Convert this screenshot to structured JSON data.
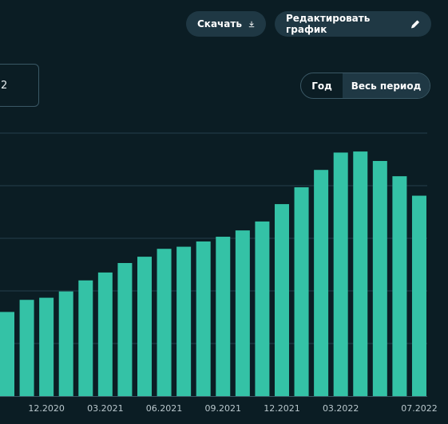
{
  "toolbar": {
    "download_label": "Скачать",
    "edit_label": "Редактировать график"
  },
  "selector": {
    "value": "2"
  },
  "period_toggle": {
    "options": [
      "Год",
      "Весь период"
    ],
    "active": "Весь период"
  },
  "colors": {
    "background": "#0b1d24",
    "bar": "#34c2a6",
    "grid": "#24404b",
    "button_bg": "#1f3844"
  },
  "icons": {
    "download": "download-icon",
    "edit": "pencil-icon"
  },
  "chart_data": {
    "type": "bar",
    "categories": [
      "10.2020",
      "11.2020",
      "12.2020",
      "01.2021",
      "02.2021",
      "03.2021",
      "04.2021",
      "05.2021",
      "06.2021",
      "07.2021",
      "08.2021",
      "09.2021",
      "10.2021",
      "11.2021",
      "12.2021",
      "01.2022",
      "02.2022",
      "03.2022",
      "04.2022",
      "05.2022",
      "06.2022",
      "07.2022"
    ],
    "x_tick_labels": [
      "12.2020",
      "03.2021",
      "06.2021",
      "09.2021",
      "12.2021",
      "03.2022",
      "07.2022"
    ],
    "values": [
      1.6,
      1.83,
      1.87,
      1.99,
      2.2,
      2.35,
      2.53,
      2.65,
      2.8,
      2.84,
      2.94,
      3.03,
      3.15,
      3.32,
      3.65,
      3.97,
      4.3,
      4.63,
      4.65,
      4.47,
      4.18,
      3.81
    ],
    "ylim": [
      0,
      5
    ],
    "grid": true,
    "title": "",
    "xlabel": "",
    "ylabel": ""
  }
}
